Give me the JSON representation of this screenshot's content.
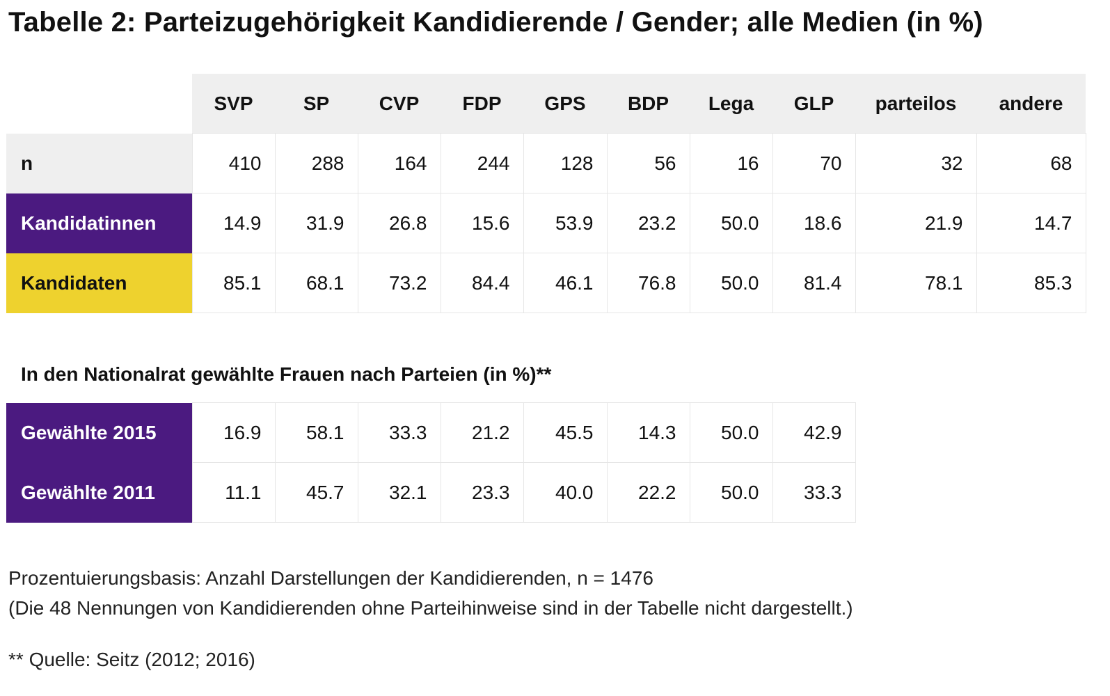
{
  "title": "Tabelle 2: Parteizugehörigkeit Kandidierende / Gender; alle Medien (in %)",
  "columns": [
    "SVP",
    "SP",
    "CVP",
    "FDP",
    "GPS",
    "BDP",
    "Lega",
    "GLP",
    "parteilos",
    "andere"
  ],
  "table1": {
    "rows": [
      {
        "label": "n",
        "values": [
          "410",
          "288",
          "164",
          "244",
          "128",
          "56",
          "16",
          "70",
          "32",
          "68"
        ]
      },
      {
        "label": "Kandidatinnen",
        "values": [
          "14.9",
          "31.9",
          "26.8",
          "15.6",
          "53.9",
          "23.2",
          "50.0",
          "18.6",
          "21.9",
          "14.7"
        ]
      },
      {
        "label": "Kandidaten",
        "values": [
          "85.1",
          "68.1",
          "73.2",
          "84.4",
          "46.1",
          "76.8",
          "50.0",
          "81.4",
          "78.1",
          "85.3"
        ]
      }
    ]
  },
  "subtitle": "In den Nationalrat gewählte Frauen nach Parteien (in %)**",
  "table2": {
    "rows": [
      {
        "label": "Gewählte 2015",
        "values": [
          "16.9",
          "58.1",
          "33.3",
          "21.2",
          "45.5",
          "14.3",
          "50.0",
          "42.9"
        ]
      },
      {
        "label": "Gewählte 2011",
        "values": [
          "11.1",
          "45.7",
          "32.1",
          "23.3",
          "40.0",
          "22.2",
          "50.0",
          "33.3"
        ]
      }
    ]
  },
  "notes": {
    "line1": "Prozentuierungsbasis: Anzahl Darstellungen der Kandidierenden, n = 1476",
    "line2": "(Die 48 Nennungen von Kandidierenden ohne Parteihinweise sind in der Tabelle nicht dargestellt.)",
    "source": "** Quelle: Seitz (2012; 2016)"
  },
  "colors": {
    "purple": "#4b1a80",
    "yellow": "#eed22e",
    "header_gray": "#efefef"
  }
}
